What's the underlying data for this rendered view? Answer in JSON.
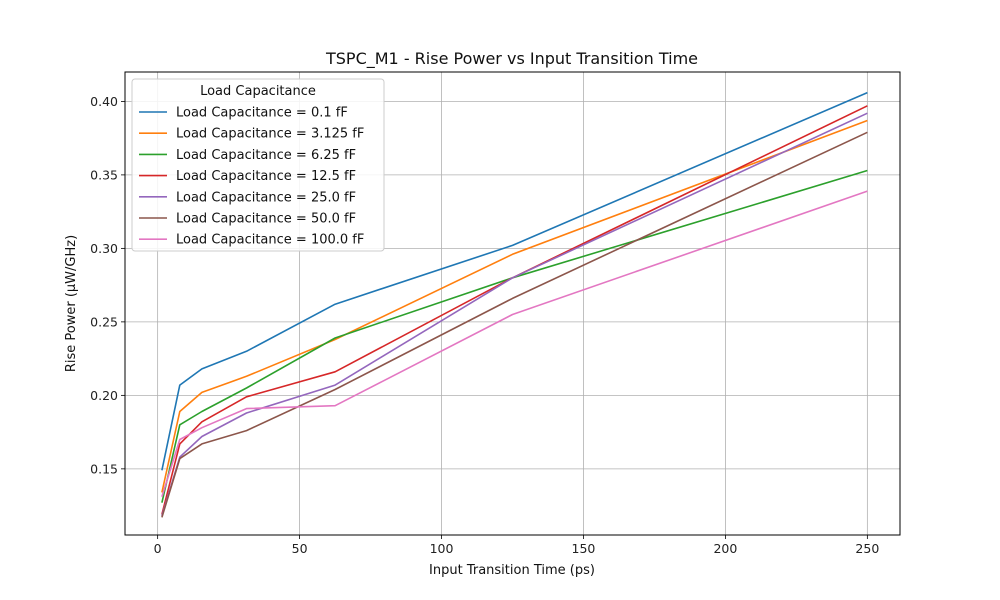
{
  "chart_data": {
    "type": "line",
    "title": "TSPC_M1 - Rise Power vs Input Transition Time",
    "xlabel": "Input Transition Time (ps)",
    "ylabel": "Rise Power (µW/GHz)",
    "xlim": [
      -11.5,
      261.5
    ],
    "ylim": [
      0.105,
      0.42
    ],
    "xticks": [
      0,
      50,
      100,
      150,
      200,
      250
    ],
    "xtick_labels": [
      "0",
      "50",
      "100",
      "150",
      "200",
      "250"
    ],
    "yticks": [
      0.15,
      0.2,
      0.25,
      0.3,
      0.35,
      0.4
    ],
    "ytick_labels": [
      "0.15",
      "0.20",
      "0.25",
      "0.30",
      "0.35",
      "0.40"
    ],
    "grid": true,
    "legend": {
      "title": "Load Capacitance",
      "placement": "top-left"
    },
    "x": [
      1.5,
      7.8,
      15.6,
      31.3,
      62.5,
      125,
      250
    ],
    "series": [
      {
        "name": "Load Capacitance = 0.1 fF",
        "color": "#1f77b4",
        "values": [
          0.149,
          0.207,
          0.218,
          0.23,
          0.262,
          0.302,
          0.406
        ]
      },
      {
        "name": "Load Capacitance = 3.125 fF",
        "color": "#ff7f0e",
        "values": [
          0.134,
          0.189,
          0.202,
          0.213,
          0.238,
          0.296,
          0.387
        ]
      },
      {
        "name": "Load Capacitance = 6.25 fF",
        "color": "#2ca02c",
        "values": [
          0.127,
          0.18,
          0.189,
          0.205,
          0.239,
          0.28,
          0.353
        ]
      },
      {
        "name": "Load Capacitance = 12.5 fF",
        "color": "#d62728",
        "values": [
          0.119,
          0.167,
          0.182,
          0.199,
          0.216,
          0.28,
          0.397
        ]
      },
      {
        "name": "Load Capacitance = 25.0 fF",
        "color": "#9467bd",
        "values": [
          0.118,
          0.158,
          0.172,
          0.188,
          0.207,
          0.28,
          0.392
        ]
      },
      {
        "name": "Load Capacitance = 50.0 fF",
        "color": "#8c564b",
        "values": [
          0.117,
          0.157,
          0.167,
          0.176,
          0.204,
          0.266,
          0.379
        ]
      },
      {
        "name": "Load Capacitance = 100.0 fF",
        "color": "#e377c2",
        "values": [
          0.131,
          0.17,
          0.178,
          0.191,
          0.193,
          0.255,
          0.339
        ]
      }
    ]
  }
}
